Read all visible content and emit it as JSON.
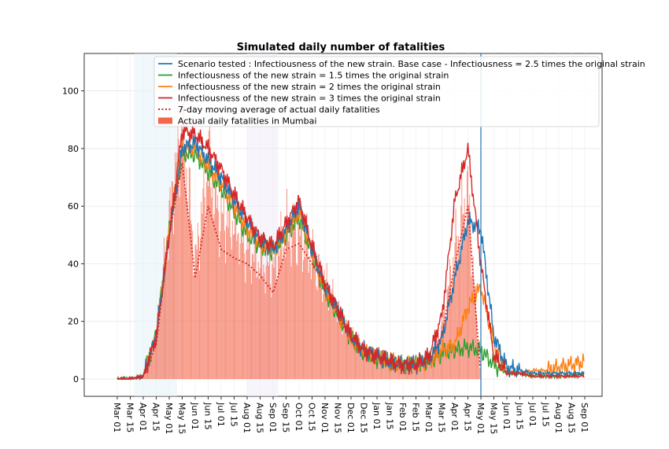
{
  "chart_data": {
    "type": "line",
    "title": "Simulated daily number of fatalities",
    "xlabel": "",
    "ylabel": "",
    "ylim": [
      -6,
      113
    ],
    "yticks": [
      0,
      20,
      40,
      60,
      80,
      100
    ],
    "x_ticks": [
      "Mar 01",
      "Mar 15",
      "Apr 01",
      "Apr 15",
      "May 01",
      "May 15",
      "Jun 01",
      "Jun 15",
      "Jul 01",
      "Jul 15",
      "Aug 01",
      "Aug 15",
      "Sep 01",
      "Sep 15",
      "Oct 01",
      "Oct 15",
      "Nov 01",
      "Nov 15",
      "Dec 01",
      "Dec 15",
      "Jan 01",
      "Jan 15",
      "Feb 01",
      "Feb 15",
      "Mar 01",
      "Mar 15",
      "Apr 01",
      "Apr 15",
      "May 01",
      "May 15",
      "Jun 01",
      "Jun 15",
      "Jul 01",
      "Jul 15",
      "Aug 01",
      "Aug 15",
      "Sep 01"
    ],
    "grid": true,
    "legend_position": "top-right",
    "vertical_line_at": "May 01",
    "colors": {
      "base": "#1f77b4",
      "s15": "#2ca02c",
      "s2": "#ff7f0e",
      "s3": "#d62728",
      "ma": "#d62728",
      "bars": "#f4654b"
    },
    "categories": [
      "Mar 01",
      "Mar 15",
      "Apr 01",
      "Apr 15",
      "May 01",
      "May 15",
      "Jun 01",
      "Jun 15",
      "Jul 01",
      "Jul 15",
      "Aug 01",
      "Aug 15",
      "Sep 01",
      "Sep 15",
      "Oct 01",
      "Oct 15",
      "Nov 01",
      "Nov 15",
      "Dec 01",
      "Dec 15",
      "Jan 01",
      "Jan 15",
      "Feb 01",
      "Feb 15",
      "Mar 01",
      "Mar 15",
      "Apr 01",
      "Apr 15",
      "May 01",
      "May 15",
      "Jun 01",
      "Jun 15",
      "Jul 01",
      "Jul 15",
      "Aug 01",
      "Aug 15",
      "Sep 01"
    ],
    "series": [
      {
        "name": "Scenario tested : Infectiousness of the new strain. Base case - Infectiousness = 2.5 times the original strain",
        "key": "base",
        "style": "line",
        "values": [
          0,
          0,
          1,
          15,
          50,
          80,
          82,
          76,
          70,
          62,
          55,
          48,
          45,
          52,
          60,
          45,
          32,
          24,
          15,
          10,
          8,
          6,
          5,
          5,
          7,
          14,
          35,
          55,
          52,
          15,
          4,
          3,
          2,
          2,
          2,
          2,
          2
        ]
      },
      {
        "name": "Infectiousness of the new strain = 1.5 times the original strain",
        "key": "s15",
        "style": "line",
        "values": [
          0,
          0,
          1,
          15,
          52,
          78,
          78,
          72,
          66,
          58,
          50,
          46,
          44,
          50,
          56,
          43,
          30,
          22,
          14,
          9,
          7,
          6,
          5,
          5,
          6,
          9,
          10,
          11,
          10,
          5,
          2,
          2,
          1,
          1,
          1,
          1,
          2
        ]
      },
      {
        "name": "Infectiousness of the new strain = 2 times the original strain",
        "key": "s2",
        "style": "line",
        "values": [
          0,
          0,
          1,
          15,
          52,
          80,
          80,
          74,
          68,
          60,
          52,
          47,
          45,
          51,
          58,
          44,
          31,
          23,
          14,
          10,
          8,
          6,
          5,
          5,
          6,
          10,
          12,
          25,
          32,
          12,
          3,
          2,
          3,
          3,
          4,
          5,
          6
        ]
      },
      {
        "name": "Infectiousness of the new strain = 3 times the original strain",
        "key": "s3",
        "style": "line",
        "values": [
          0,
          0,
          1,
          15,
          50,
          86,
          85,
          80,
          73,
          64,
          56,
          49,
          46,
          54,
          62,
          46,
          33,
          24,
          15,
          10,
          8,
          6,
          5,
          5,
          8,
          22,
          62,
          80,
          40,
          8,
          2,
          2,
          1,
          1,
          1,
          1,
          1
        ]
      },
      {
        "name": "7-day moving average of actual daily fatalities",
        "key": "ma",
        "style": "dotted",
        "values": [
          0,
          0,
          1,
          12,
          50,
          75,
          35,
          60,
          45,
          42,
          40,
          36,
          30,
          45,
          47,
          40,
          33,
          22,
          14,
          10,
          8,
          6,
          4,
          4,
          6,
          15,
          40,
          60,
          0,
          null,
          null,
          null,
          null,
          null,
          null,
          null,
          null
        ]
      },
      {
        "name": "Actual daily fatalities in Mumbai",
        "key": "bars",
        "style": "bars",
        "values": [
          0,
          0,
          2,
          15,
          55,
          90,
          40,
          75,
          55,
          55,
          45,
          40,
          38,
          52,
          50,
          42,
          34,
          23,
          15,
          11,
          8,
          6,
          5,
          5,
          7,
          18,
          45,
          65,
          0,
          null,
          null,
          null,
          null,
          null,
          null,
          null,
          null
        ]
      }
    ]
  }
}
